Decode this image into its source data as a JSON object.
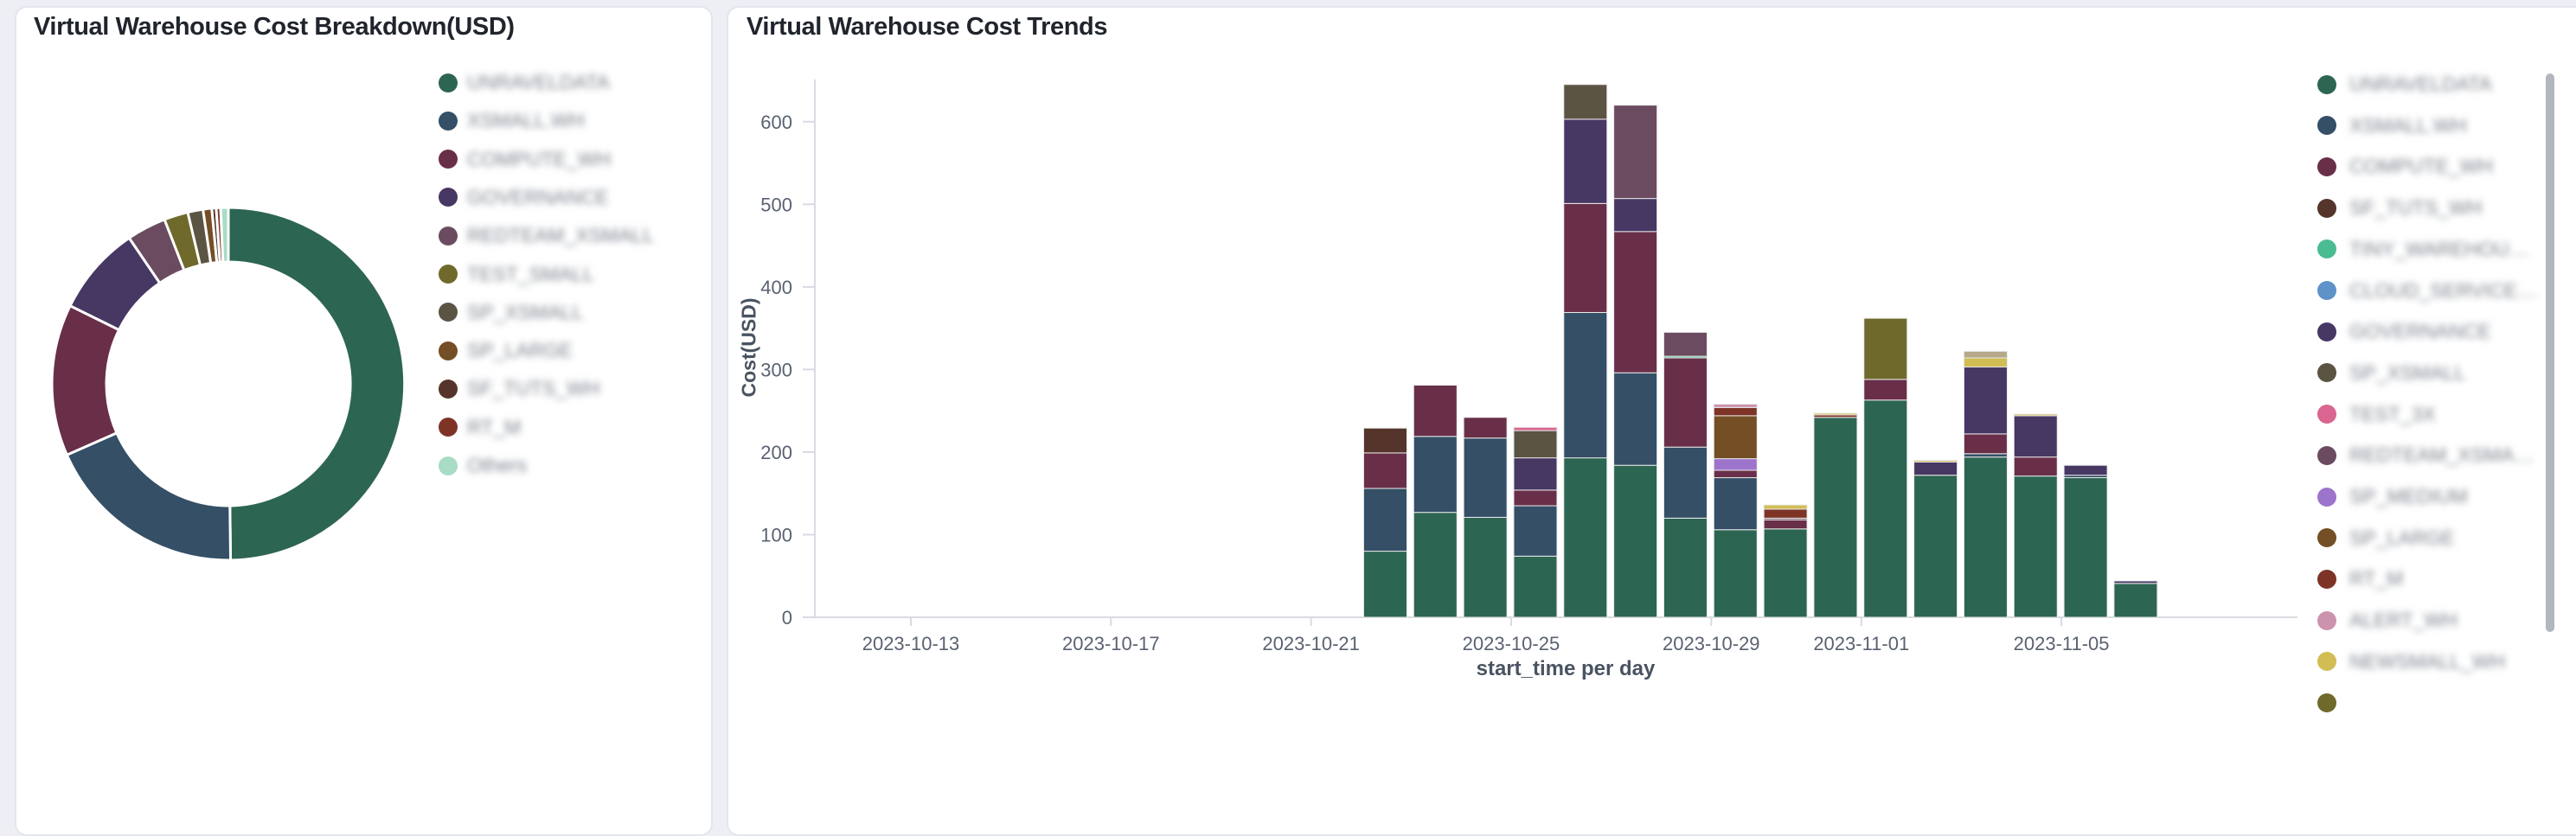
{
  "page": {
    "background": "#edeff4"
  },
  "left_card": {
    "title": "Virtual Warehouse Cost Breakdown(USD)",
    "chart_data": {
      "type": "pie",
      "donut": true,
      "title": "Virtual Warehouse Cost Breakdown(USD)",
      "legend_position": "right",
      "segments": [
        {
          "label": "UNRAVELDATA",
          "color": "#2d6553",
          "share_pct": 49.8
        },
        {
          "label": "XSMALL.WH",
          "color": "#344f66",
          "share_pct": 18.6
        },
        {
          "label": "COMPUTE_WH",
          "color": "#692f48",
          "share_pct": 13.9
        },
        {
          "label": "GOVERNANCE",
          "color": "#463763",
          "share_pct": 8.2
        },
        {
          "label": "REDTEAM_XSMALL",
          "color": "#6b4b60",
          "share_pct": 3.6
        },
        {
          "label": "TEST_SMALL",
          "color": "#6f6a2b",
          "share_pct": 2.2
        },
        {
          "label": "SP_XSMALL",
          "color": "#5c5443",
          "share_pct": 1.4
        },
        {
          "label": "SP_LARGE",
          "color": "#744e24",
          "share_pct": 0.8
        },
        {
          "label": "SF_TUTS_WH",
          "color": "#54342b",
          "share_pct": 0.4
        },
        {
          "label": "RT_M",
          "color": "#7d3427",
          "share_pct": 0.4
        },
        {
          "label": "Others",
          "color": "#a8dcc5",
          "share_pct": 0.7
        }
      ]
    }
  },
  "right_card": {
    "title": "Virtual Warehouse Cost Trends",
    "chart_data": {
      "type": "bar",
      "stacked": true,
      "title": "Virtual Warehouse Cost Trends",
      "xlabel": "start_time per day",
      "ylabel": "Cost(USD)",
      "ylim": [
        0,
        650
      ],
      "y_ticks": [
        0,
        100,
        200,
        300,
        400,
        500,
        600
      ],
      "x_tick_labels": [
        "2023-10-13",
        "2023-10-17",
        "2023-10-21",
        "2023-10-25",
        "2023-10-29",
        "2023-11-01",
        "2023-11-05"
      ],
      "grid": false,
      "legend_position": "right",
      "x": [
        "2023-10-22",
        "2023-10-23",
        "2023-10-24",
        "2023-10-25",
        "2023-10-26",
        "2023-10-27",
        "2023-10-28",
        "2023-10-29",
        "2023-10-30",
        "2023-10-31",
        "2023-11-01",
        "2023-11-02",
        "2023-11-03",
        "2023-11-04",
        "2023-11-05",
        "2023-11-06"
      ],
      "series": [
        {
          "name": "UNRAVELDATA",
          "color": "#2d6553",
          "values": [
            80,
            127,
            121,
            74,
            193,
            184,
            120,
            106,
            107,
            242,
            263,
            172,
            194,
            171,
            169,
            41
          ]
        },
        {
          "name": "XSMALL.WH",
          "color": "#344f66",
          "values": [
            76,
            92,
            96,
            61,
            176,
            112,
            86,
            63,
            0,
            0,
            0,
            0,
            4,
            0,
            3,
            0
          ]
        },
        {
          "name": "COMPUTE_WH",
          "color": "#692f48",
          "values": [
            43,
            62,
            25,
            19,
            132,
            171,
            108,
            9,
            11,
            0,
            25,
            0,
            24,
            23,
            0,
            0
          ]
        },
        {
          "name": "SF_TUTS_WH",
          "color": "#54342b",
          "values": [
            30,
            0,
            0,
            0,
            0,
            0,
            0,
            0,
            0,
            0,
            0,
            0,
            0,
            0,
            0,
            0
          ]
        },
        {
          "name": "TINY_WAREHOU…",
          "color": "#4bbc92",
          "values": [
            0,
            0,
            0,
            0,
            0,
            0,
            2,
            0,
            0,
            0,
            0,
            0,
            0,
            0,
            0,
            0
          ]
        },
        {
          "name": "CLOUD_SERVICE…",
          "color": "#5e92c9",
          "values": [
            0,
            0,
            0,
            0,
            0,
            0,
            0,
            0,
            0,
            0,
            0,
            0,
            0,
            0,
            0,
            0
          ]
        },
        {
          "name": "GOVERNANCE",
          "color": "#463763",
          "values": [
            0,
            0,
            0,
            39,
            102,
            40,
            0,
            0,
            0,
            0,
            0,
            16,
            81,
            50,
            12,
            3
          ]
        },
        {
          "name": "SP_XSMALL",
          "color": "#5c5443",
          "values": [
            0,
            0,
            0,
            33,
            42,
            0,
            0,
            0,
            0,
            0,
            0,
            0,
            0,
            0,
            0,
            0
          ]
        },
        {
          "name": "TEST_3X",
          "color": "#d96590",
          "values": [
            0,
            0,
            0,
            4,
            0,
            0,
            0,
            0,
            0,
            0,
            0,
            0,
            0,
            0,
            0,
            0
          ]
        },
        {
          "name": "REDTEAM_XSMA…",
          "color": "#6b4b60",
          "values": [
            0,
            0,
            0,
            0,
            0,
            113,
            29,
            0,
            2,
            0,
            0,
            0,
            0,
            0,
            0,
            0
          ]
        },
        {
          "name": "SP_MEDIUM",
          "color": "#9d74cc",
          "values": [
            0,
            0,
            0,
            0,
            0,
            0,
            0,
            14,
            0,
            0,
            0,
            0,
            0,
            0,
            0,
            0
          ]
        },
        {
          "name": "SP_LARGE",
          "color": "#744e24",
          "values": [
            0,
            0,
            0,
            0,
            0,
            0,
            0,
            52,
            0,
            0,
            0,
            0,
            0,
            0,
            0,
            0
          ]
        },
        {
          "name": "RT_M",
          "color": "#7d3427",
          "values": [
            0,
            0,
            0,
            0,
            0,
            0,
            0,
            10,
            11,
            3,
            0,
            0,
            0,
            0,
            0,
            0
          ]
        },
        {
          "name": "ALERT_WH",
          "color": "#cc92ae",
          "values": [
            0,
            0,
            0,
            0,
            0,
            0,
            0,
            4,
            0,
            0,
            0,
            0,
            0,
            0,
            0,
            0
          ]
        },
        {
          "name": "NEWSMALL_WH",
          "color": "#d2bd55",
          "values": [
            0,
            0,
            0,
            0,
            0,
            0,
            0,
            0,
            5,
            2,
            0,
            2,
            11,
            2,
            0,
            0
          ]
        },
        {
          "name": "TEST_SMALL",
          "color": "#6f6a2b",
          "values": [
            0,
            0,
            0,
            0,
            0,
            0,
            0,
            0,
            0,
            0,
            74,
            0,
            0,
            0,
            0,
            0
          ]
        },
        {
          "name": "",
          "color": "#b5a98a",
          "values": [
            0,
            0,
            0,
            0,
            0,
            0,
            0,
            0,
            0,
            0,
            0,
            0,
            8,
            0,
            0,
            0
          ]
        }
      ]
    },
    "legend": [
      {
        "label": "UNRAVELDATA",
        "color": "#2d6553"
      },
      {
        "label": "XSMALL.WH",
        "color": "#344f66"
      },
      {
        "label": "COMPUTE_WH",
        "color": "#692f48"
      },
      {
        "label": "SF_TUTS_WH",
        "color": "#54342b"
      },
      {
        "label": "TINY_WAREHOU…",
        "color": "#4bbc92"
      },
      {
        "label": "CLOUD_SERVICE…",
        "color": "#5e92c9"
      },
      {
        "label": "GOVERNANCE",
        "color": "#463763"
      },
      {
        "label": "SP_XSMALL",
        "color": "#5c5443"
      },
      {
        "label": "TEST_3X",
        "color": "#d96590"
      },
      {
        "label": "REDTEAM_XSMA…",
        "color": "#6b4b60"
      },
      {
        "label": "SP_MEDIUM",
        "color": "#9d74cc"
      },
      {
        "label": "SP_LARGE",
        "color": "#744e24"
      },
      {
        "label": "RT_M",
        "color": "#7d3427"
      },
      {
        "label": "ALERT_WH",
        "color": "#cc92ae"
      },
      {
        "label": "NEWSMALL_WH",
        "color": "#d2bd55"
      },
      {
        "label": "",
        "color": "#6f6a2b",
        "partial": true
      }
    ]
  }
}
